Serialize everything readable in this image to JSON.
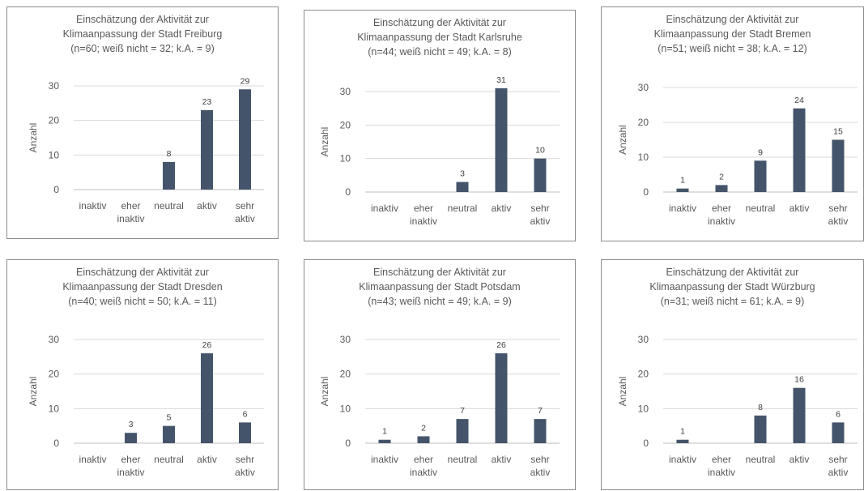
{
  "chart_data": [
    {
      "type": "bar",
      "title": [
        "Einschätzung der Aktivität zur",
        "Klimaanpassung der Stadt Freiburg",
        "(n=60; weiß nicht = 32; k.A. = 9)"
      ],
      "ylabel": "Anzahl",
      "ylim": [
        0,
        30
      ],
      "yticks": [
        "0",
        "10",
        "20",
        "30"
      ],
      "categories": [
        [
          "inaktiv"
        ],
        [
          "eher",
          "inaktiv"
        ],
        [
          "neutral"
        ],
        [
          "aktiv"
        ],
        [
          "sehr",
          "aktiv"
        ]
      ],
      "values": [
        0,
        0,
        8,
        23,
        29
      ],
      "labels": [
        "",
        "",
        "8",
        "23",
        "29"
      ],
      "bar_color": "#44546a",
      "grid": true
    },
    {
      "type": "bar",
      "title": [
        "Einschätzung der Aktivität zur",
        "Klimaanpassung der Stadt Karlsruhe",
        "(n=44; weiß nicht = 49; k.A. = 8)"
      ],
      "ylabel": "Anzahl",
      "ylim": [
        0,
        30
      ],
      "yticks": [
        "0",
        "10",
        "20",
        "30"
      ],
      "categories": [
        [
          "inaktiv"
        ],
        [
          "eher",
          "inaktiv"
        ],
        [
          "neutral"
        ],
        [
          "aktiv"
        ],
        [
          "sehr",
          "aktiv"
        ]
      ],
      "values": [
        0,
        0,
        3,
        31,
        10
      ],
      "labels": [
        "",
        "",
        "3",
        "31",
        "10"
      ],
      "bar_color": "#44546a",
      "grid": true
    },
    {
      "type": "bar",
      "title": [
        "Einschätzung der Aktivität zur",
        "Klimaanpassung der Stadt Bremen",
        "(n=51; weiß nicht = 38; k.A. = 12)"
      ],
      "ylabel": "Anzahl",
      "ylim": [
        0,
        30
      ],
      "yticks": [
        "0",
        "10",
        "20",
        "30"
      ],
      "categories": [
        [
          "inaktiv"
        ],
        [
          "eher",
          "inaktiv"
        ],
        [
          "neutral"
        ],
        [
          "aktiv"
        ],
        [
          "sehr",
          "aktiv"
        ]
      ],
      "values": [
        1,
        2,
        9,
        24,
        15
      ],
      "labels": [
        "1",
        "2",
        "9",
        "24",
        "15"
      ],
      "bar_color": "#44546a",
      "grid": true
    },
    {
      "type": "bar",
      "title": [
        "Einschätzung der Aktivität zur",
        "Klimaanpassung der Stadt Dresden",
        "(n=40; weiß nicht = 50; k.A. = 11)"
      ],
      "ylabel": "Anzahl",
      "ylim": [
        0,
        30
      ],
      "yticks": [
        "0",
        "10",
        "20",
        "30"
      ],
      "categories": [
        [
          "inaktiv"
        ],
        [
          "eher",
          "inaktiv"
        ],
        [
          "neutral"
        ],
        [
          "aktiv"
        ],
        [
          "sehr",
          "aktiv"
        ]
      ],
      "values": [
        0,
        3,
        5,
        26,
        6
      ],
      "labels": [
        "",
        "3",
        "5",
        "26",
        "6"
      ],
      "bar_color": "#44546a",
      "grid": true
    },
    {
      "type": "bar",
      "title": [
        "Einschätzung der Aktivität zur",
        "Klimaanpassung der Stadt Potsdam",
        "(n=43; weiß nicht = 49; k.A. = 9)"
      ],
      "ylabel": "Anzahl",
      "ylim": [
        0,
        30
      ],
      "yticks": [
        "0",
        "10",
        "20",
        "30"
      ],
      "categories": [
        [
          "inaktiv"
        ],
        [
          "eher",
          "inaktiv"
        ],
        [
          "neutral"
        ],
        [
          "aktiv"
        ],
        [
          "sehr",
          "aktiv"
        ]
      ],
      "values": [
        1,
        2,
        7,
        26,
        7
      ],
      "labels": [
        "1",
        "2",
        "7",
        "26",
        "7"
      ],
      "bar_color": "#44546a",
      "grid": true
    },
    {
      "type": "bar",
      "title": [
        "Einschätzung der Aktivität zur",
        "Klimaanpassung der Stadt Würzburg",
        "(n=31; weiß nicht = 61; k.A. = 9)"
      ],
      "ylabel": "Anzahl",
      "ylim": [
        0,
        30
      ],
      "yticks": [
        "0",
        "10",
        "20",
        "30"
      ],
      "categories": [
        [
          "inaktiv"
        ],
        [
          "eher",
          "inaktiv"
        ],
        [
          "neutral"
        ],
        [
          "aktiv"
        ],
        [
          "sehr",
          "aktiv"
        ]
      ],
      "values": [
        1,
        0,
        8,
        16,
        6
      ],
      "labels": [
        "1",
        "",
        "8",
        "16",
        "6"
      ],
      "bar_color": "#44546a",
      "grid": true
    }
  ]
}
